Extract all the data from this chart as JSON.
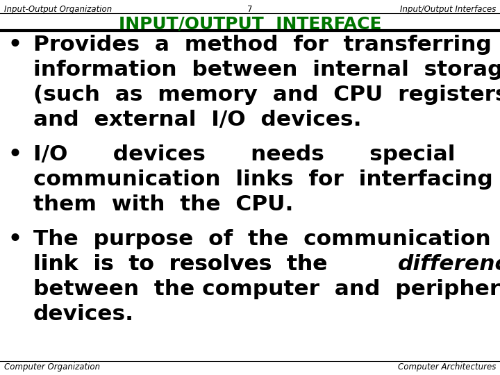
{
  "bg_color": "#ffffff",
  "header_left": "Input-Output Organization",
  "header_center": "7",
  "header_right": "Input/Output Interfaces",
  "title": "INPUT/OUTPUT  INTERFACE",
  "title_color": "#007700",
  "footer_left": "Computer Organization",
  "footer_right": "Computer Architectures",
  "text_color": "#000000",
  "line_color": "#000000",
  "bullet1_lines": [
    "Provides  a  method  for  transferring",
    "information  between  internal  storage",
    "(such  as  memory  and  CPU  registers)",
    "and  external  I/O  devices."
  ],
  "bullet2_lines": [
    "I/O      devices      needs      special",
    "communication  links  for  interfacing",
    "them  with  the  CPU."
  ],
  "bullet3_line1": "The  purpose  of  the  communication",
  "bullet3_line2_prefix": "link  is  to  resolves  the  ",
  "bullet3_line2_italic": "differences",
  "bullet3_line3": "between  the computer  and  peripheral",
  "bullet3_line4": "devices."
}
